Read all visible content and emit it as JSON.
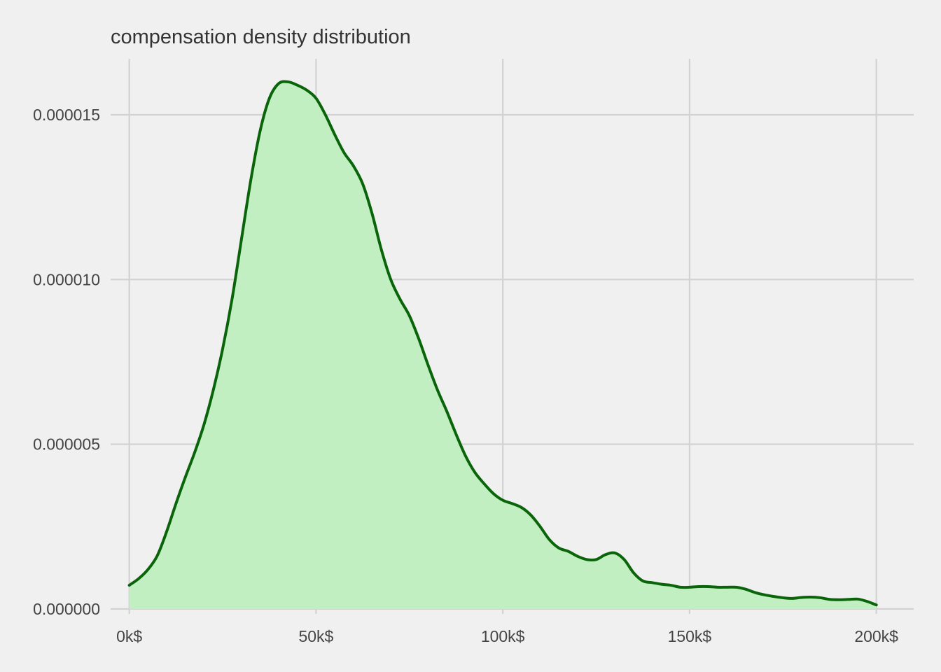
{
  "chart_data": {
    "type": "area",
    "title": "compensation density distribution",
    "xlabel": "",
    "ylabel": "",
    "xlim": [
      -5000,
      210000
    ],
    "ylim": [
      -1.5e-07,
      1.67e-05
    ],
    "x_ticks": [
      {
        "value": 0,
        "label": "0k$"
      },
      {
        "value": 50000,
        "label": "50k$"
      },
      {
        "value": 100000,
        "label": "100k$"
      },
      {
        "value": 150000,
        "label": "150k$"
      },
      {
        "value": 200000,
        "label": "200k$"
      }
    ],
    "y_ticks": [
      {
        "value": 0,
        "label": "0.000000"
      },
      {
        "value": 5e-06,
        "label": "0.000005"
      },
      {
        "value": 1e-05,
        "label": "0.000010"
      },
      {
        "value": 1.5e-05,
        "label": "0.000015"
      }
    ],
    "grid": true,
    "fill_color": "#c1efc1",
    "line_color": "#0a640a",
    "background": "#f0f0f0",
    "grid_color": "#d2d2d2",
    "series": [
      {
        "x": [
          0,
          2500,
          5000,
          7500,
          10000,
          12500,
          15000,
          17500,
          20000,
          22500,
          25000,
          27500,
          30000,
          32500,
          35000,
          37500,
          40000,
          42500,
          45000,
          47500,
          50000,
          52500,
          55000,
          57500,
          60000,
          62500,
          65000,
          67500,
          70000,
          72500,
          75000,
          77500,
          80000,
          82500,
          85000,
          87500,
          90000,
          92500,
          95000,
          97500,
          100000,
          102500,
          105000,
          107500,
          110000,
          112500,
          115000,
          117500,
          120000,
          122500,
          125000,
          127500,
          130000,
          132500,
          135000,
          137500,
          140000,
          142500,
          145000,
          147500,
          150000,
          152500,
          155000,
          157500,
          160000,
          162500,
          165000,
          167500,
          170000,
          172500,
          175000,
          177500,
          180000,
          182500,
          185000,
          187500,
          190000,
          192500,
          195000,
          197500,
          200000
        ],
        "y": [
          7.2e-07,
          9.2e-07,
          1.2e-06,
          1.62e-06,
          2.35e-06,
          3.2e-06,
          4e-06,
          4.75e-06,
          5.6e-06,
          6.65e-06,
          7.9e-06,
          9.4e-06,
          1.12e-05,
          1.3e-05,
          1.45e-05,
          1.55e-05,
          1.595e-05,
          1.6e-05,
          1.59e-05,
          1.575e-05,
          1.55e-05,
          1.5e-05,
          1.44e-05,
          1.385e-05,
          1.345e-05,
          1.29e-05,
          1.2e-05,
          1.09e-05,
          1e-05,
          9.4e-06,
          8.9e-06,
          8.2e-06,
          7.4e-06,
          6.65e-06,
          6e-06,
          5.3e-06,
          4.65e-06,
          4.15e-06,
          3.8e-06,
          3.5e-06,
          3.3e-06,
          3.2e-06,
          3.08e-06,
          2.85e-06,
          2.5e-06,
          2.1e-06,
          1.85e-06,
          1.75e-06,
          1.6e-06,
          1.5e-06,
          1.5e-06,
          1.65e-06,
          1.7e-06,
          1.5e-06,
          1.1e-06,
          8.5e-07,
          8e-07,
          7.5e-07,
          7.2e-07,
          6.6e-07,
          6.6e-07,
          6.8e-07,
          6.8e-07,
          6.6e-07,
          6.6e-07,
          6.6e-07,
          6e-07,
          5e-07,
          4.3e-07,
          3.8e-07,
          3.4e-07,
          3.2e-07,
          3.5e-07,
          3.6e-07,
          3.4e-07,
          2.9e-07,
          2.8e-07,
          2.9e-07,
          3e-07,
          2.3e-07,
          1.2e-07
        ]
      }
    ]
  }
}
